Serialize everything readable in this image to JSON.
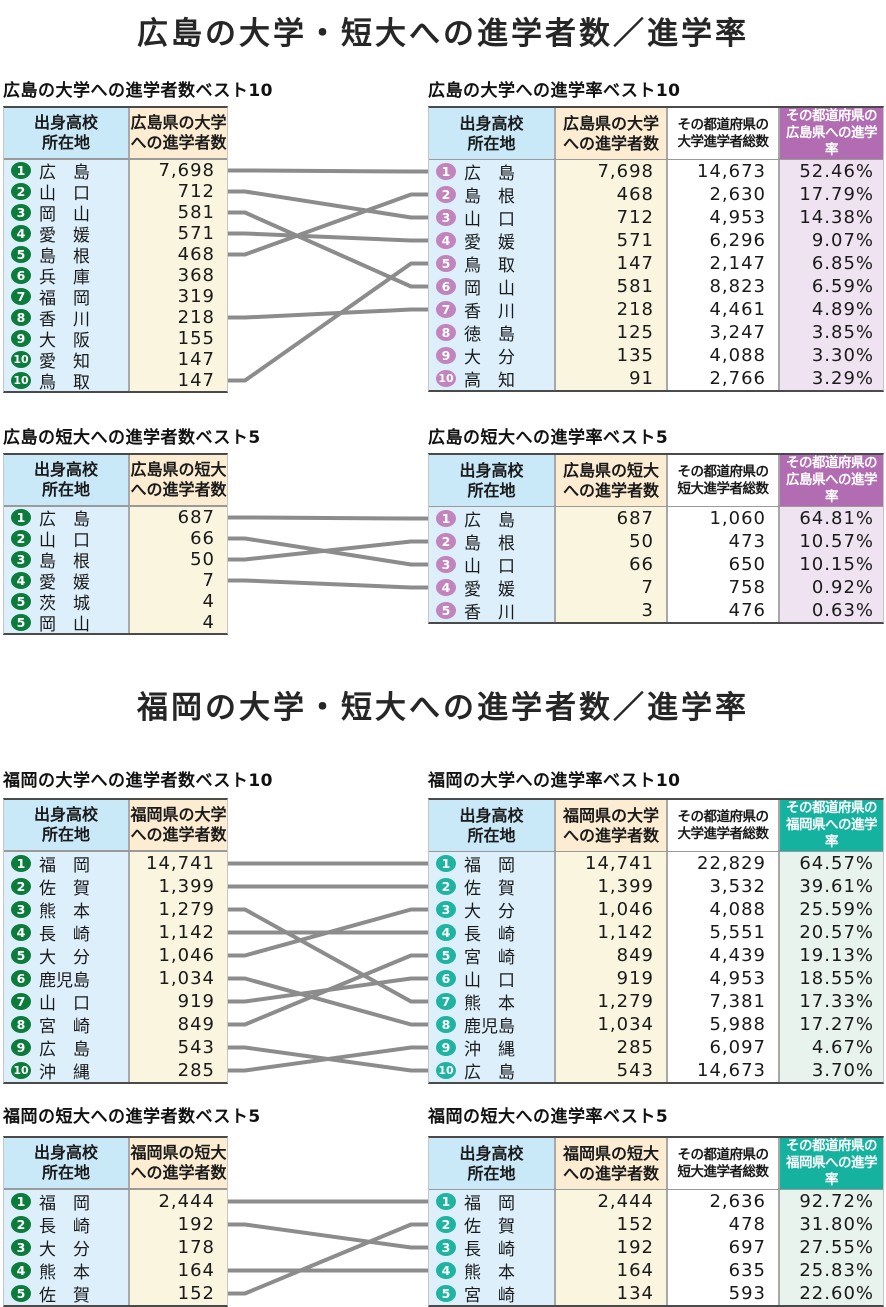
{
  "colors": {
    "header_blue": "#c9e8f8",
    "body_blue": "#dceffa",
    "header_cream": "#fbecd2",
    "body_cream": "#f9f5df",
    "header_white": "#ffffff",
    "body_white": "#ffffff",
    "header_purple": "#b16cb2",
    "body_purple": "#efe3f1",
    "header_teal": "#16b2a0",
    "body_teal": "#e8f3ee",
    "badge_green": "#0c7c3c",
    "badge_purple": "#c184bd",
    "badge_teal": "#1fb4a2",
    "connector": "#8c8c8c"
  },
  "titles": {
    "hiroshima": "広島の大学・短大への進学者数／進学率",
    "fukuoka": "福岡の大学・短大への進学者数／進学率"
  },
  "chart_data": [
    {
      "type": "table",
      "id": "h-univ-count",
      "title": "広島の大学への進学者数ベスト10",
      "badge": "badge_green",
      "columns": [
        "出身高校\n所在地",
        "広島県の大学\nへの進学者数"
      ],
      "col_styles": [
        "blue",
        "cream"
      ],
      "rows": [
        [
          "1",
          "広　島",
          "7,698"
        ],
        [
          "2",
          "山　口",
          "712"
        ],
        [
          "3",
          "岡　山",
          "581"
        ],
        [
          "4",
          "愛　媛",
          "571"
        ],
        [
          "5",
          "島　根",
          "468"
        ],
        [
          "6",
          "兵　庫",
          "368"
        ],
        [
          "7",
          "福　岡",
          "319"
        ],
        [
          "8",
          "香　川",
          "218"
        ],
        [
          "9",
          "大　阪",
          "155"
        ],
        [
          "10",
          "愛　知",
          "147"
        ],
        [
          "10",
          "鳥　取",
          "147"
        ]
      ]
    },
    {
      "type": "table",
      "id": "h-univ-rate",
      "title": "広島の大学への進学率ベスト10",
      "badge": "badge_purple",
      "columns": [
        "出身高校\n所在地",
        "広島県の大学\nへの進学者数",
        "その都道府県の\n大学進学者総数",
        "その都道府県の\n広島県への進学率"
      ],
      "col_styles": [
        "blue",
        "cream",
        "white",
        "purple"
      ],
      "rows": [
        [
          "1",
          "広　島",
          "7,698",
          "14,673",
          "52.46%"
        ],
        [
          "2",
          "島　根",
          "468",
          "2,630",
          "17.79%"
        ],
        [
          "3",
          "山　口",
          "712",
          "4,953",
          "14.38%"
        ],
        [
          "4",
          "愛　媛",
          "571",
          "6,296",
          "9.07%"
        ],
        [
          "5",
          "鳥　取",
          "147",
          "2,147",
          "6.85%"
        ],
        [
          "6",
          "岡　山",
          "581",
          "8,823",
          "6.59%"
        ],
        [
          "7",
          "香　川",
          "218",
          "4,461",
          "4.89%"
        ],
        [
          "8",
          "徳　島",
          "125",
          "3,247",
          "3.85%"
        ],
        [
          "9",
          "大　分",
          "135",
          "4,088",
          "3.30%"
        ],
        [
          "10",
          "高　知",
          "91",
          "2,766",
          "3.29%"
        ]
      ]
    },
    {
      "type": "table",
      "id": "h-tandai-count",
      "title": "広島の短大への進学者数ベスト5",
      "badge": "badge_green",
      "columns": [
        "出身高校\n所在地",
        "広島県の短大\nへの進学者数"
      ],
      "col_styles": [
        "blue",
        "cream"
      ],
      "rows": [
        [
          "1",
          "広　島",
          "687"
        ],
        [
          "2",
          "山　口",
          "66"
        ],
        [
          "3",
          "島　根",
          "50"
        ],
        [
          "4",
          "愛　媛",
          "7"
        ],
        [
          "5",
          "茨　城",
          "4"
        ],
        [
          "5",
          "岡　山",
          "4"
        ]
      ]
    },
    {
      "type": "table",
      "id": "h-tandai-rate",
      "title": "広島の短大への進学率ベスト5",
      "badge": "badge_purple",
      "columns": [
        "出身高校\n所在地",
        "広島県の短大\nへの進学者数",
        "その都道府県の\n短大進学者総数",
        "その都道府県の\n広島県への進学率"
      ],
      "col_styles": [
        "blue",
        "cream",
        "white",
        "purple"
      ],
      "rows": [
        [
          "1",
          "広　島",
          "687",
          "1,060",
          "64.81%"
        ],
        [
          "2",
          "島　根",
          "50",
          "473",
          "10.57%"
        ],
        [
          "3",
          "山　口",
          "66",
          "650",
          "10.15%"
        ],
        [
          "4",
          "愛　媛",
          "7",
          "758",
          "0.92%"
        ],
        [
          "5",
          "香　川",
          "3",
          "476",
          "0.63%"
        ]
      ]
    },
    {
      "type": "table",
      "id": "f-univ-count",
      "title": "福岡の大学への進学者数ベスト10",
      "badge": "badge_green",
      "columns": [
        "出身高校\n所在地",
        "福岡県の大学\nへの進学者数"
      ],
      "col_styles": [
        "blue",
        "cream"
      ],
      "rows": [
        [
          "1",
          "福　岡",
          "14,741"
        ],
        [
          "2",
          "佐　賀",
          "1,399"
        ],
        [
          "3",
          "熊　本",
          "1,279"
        ],
        [
          "4",
          "長　崎",
          "1,142"
        ],
        [
          "5",
          "大　分",
          "1,046"
        ],
        [
          "6",
          "鹿児島",
          "1,034"
        ],
        [
          "7",
          "山　口",
          "919"
        ],
        [
          "8",
          "宮　崎",
          "849"
        ],
        [
          "9",
          "広　島",
          "543"
        ],
        [
          "10",
          "沖　縄",
          "285"
        ]
      ]
    },
    {
      "type": "table",
      "id": "f-univ-rate",
      "title": "福岡の大学への進学率ベスト10",
      "badge": "badge_teal",
      "columns": [
        "出身高校\n所在地",
        "福岡県の大学\nへの進学者数",
        "その都道府県の\n大学進学者総数",
        "その都道府県の\n福岡県への進学率"
      ],
      "col_styles": [
        "blue",
        "cream",
        "white",
        "teal"
      ],
      "rows": [
        [
          "1",
          "福　岡",
          "14,741",
          "22,829",
          "64.57%"
        ],
        [
          "2",
          "佐　賀",
          "1,399",
          "3,532",
          "39.61%"
        ],
        [
          "3",
          "大　分",
          "1,046",
          "4,088",
          "25.59%"
        ],
        [
          "4",
          "長　崎",
          "1,142",
          "5,551",
          "20.57%"
        ],
        [
          "5",
          "宮　崎",
          "849",
          "4,439",
          "19.13%"
        ],
        [
          "6",
          "山　口",
          "919",
          "4,953",
          "18.55%"
        ],
        [
          "7",
          "熊　本",
          "1,279",
          "7,381",
          "17.33%"
        ],
        [
          "8",
          "鹿児島",
          "1,034",
          "5,988",
          "17.27%"
        ],
        [
          "9",
          "沖　縄",
          "285",
          "6,097",
          "4.67%"
        ],
        [
          "10",
          "広　島",
          "543",
          "14,673",
          "3.70%"
        ]
      ]
    },
    {
      "type": "table",
      "id": "f-tandai-count",
      "title": "福岡の短大への進学者数ベスト5",
      "badge": "badge_green",
      "columns": [
        "出身高校\n所在地",
        "福岡県の短大\nへの進学者数"
      ],
      "col_styles": [
        "blue",
        "cream"
      ],
      "rows": [
        [
          "1",
          "福　岡",
          "2,444"
        ],
        [
          "2",
          "長　崎",
          "192"
        ],
        [
          "3",
          "大　分",
          "178"
        ],
        [
          "4",
          "熊　本",
          "164"
        ],
        [
          "5",
          "佐　賀",
          "152"
        ]
      ]
    },
    {
      "type": "table",
      "id": "f-tandai-rate",
      "title": "福岡の短大への進学率ベスト5",
      "badge": "badge_teal",
      "columns": [
        "出身高校\n所在地",
        "福岡県の短大\nへの進学者数",
        "その都道府県の\n短大進学者総数",
        "その都道府県の\n福岡県への進学率"
      ],
      "col_styles": [
        "blue",
        "cream",
        "white",
        "teal"
      ],
      "rows": [
        [
          "1",
          "福　岡",
          "2,444",
          "2,636",
          "92.72%"
        ],
        [
          "2",
          "佐　賀",
          "152",
          "478",
          "31.80%"
        ],
        [
          "3",
          "長　崎",
          "192",
          "697",
          "27.55%"
        ],
        [
          "4",
          "熊　本",
          "164",
          "635",
          "25.83%"
        ],
        [
          "5",
          "宮　崎",
          "134",
          "593",
          "22.60%"
        ]
      ]
    }
  ],
  "connectors": [
    {
      "from": "h-univ-count",
      "to": "h-univ-rate",
      "pairs": [
        [
          0,
          0
        ],
        [
          1,
          2
        ],
        [
          2,
          5
        ],
        [
          3,
          3
        ],
        [
          4,
          1
        ],
        [
          7,
          6
        ],
        [
          10,
          4
        ]
      ]
    },
    {
      "from": "h-tandai-count",
      "to": "h-tandai-rate",
      "pairs": [
        [
          0,
          0
        ],
        [
          1,
          2
        ],
        [
          2,
          1
        ],
        [
          3,
          3
        ]
      ]
    },
    {
      "from": "f-univ-count",
      "to": "f-univ-rate",
      "pairs": [
        [
          0,
          0
        ],
        [
          1,
          1
        ],
        [
          2,
          6
        ],
        [
          3,
          3
        ],
        [
          4,
          2
        ],
        [
          5,
          7
        ],
        [
          6,
          5
        ],
        [
          7,
          4
        ],
        [
          8,
          9
        ],
        [
          9,
          8
        ]
      ]
    },
    {
      "from": "f-tandai-count",
      "to": "f-tandai-rate",
      "pairs": [
        [
          0,
          0
        ],
        [
          1,
          2
        ],
        [
          3,
          3
        ],
        [
          4,
          1
        ]
      ]
    }
  ]
}
